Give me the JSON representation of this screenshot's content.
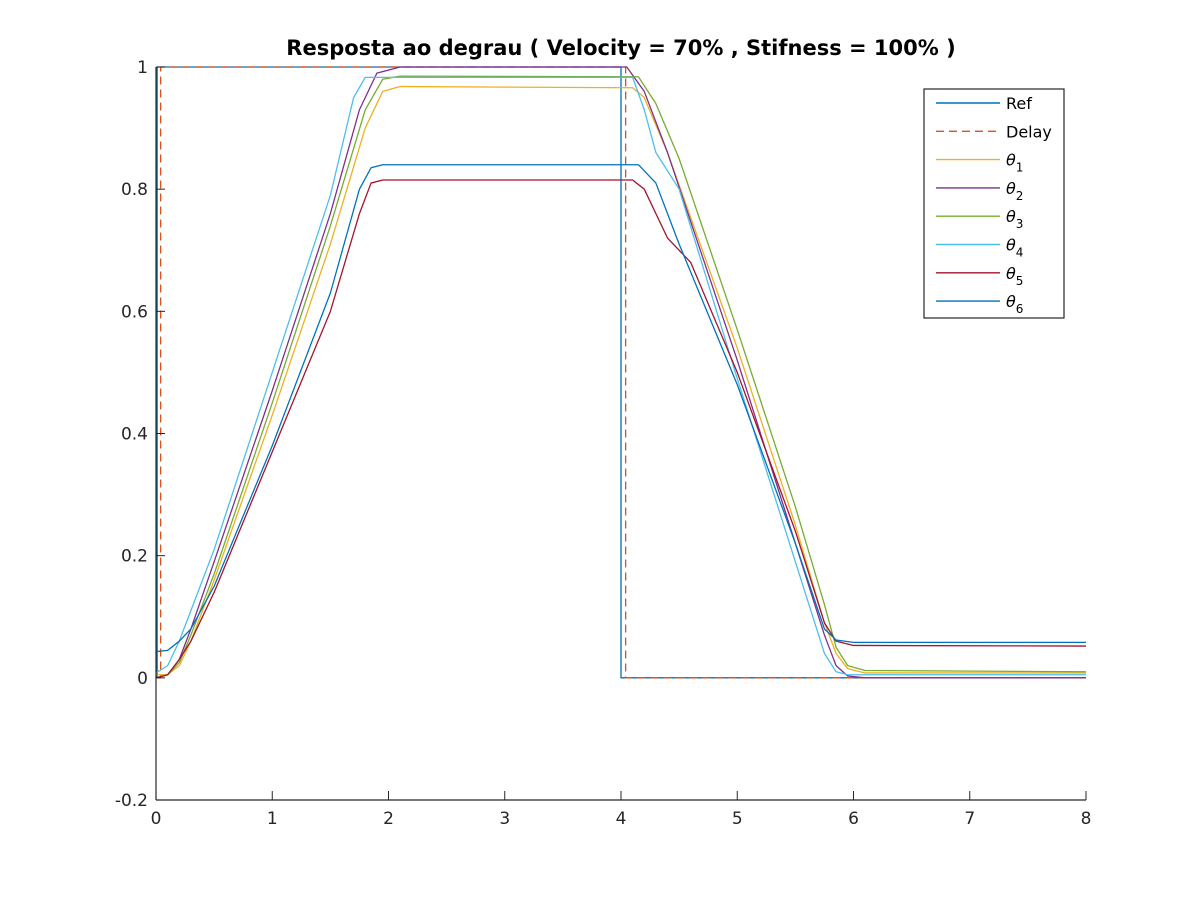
{
  "chart_data": {
    "type": "line",
    "title": "Resposta ao degrau ( Velocity = 70% , Stifness = 100% )",
    "xlabel": "",
    "ylabel": "",
    "xlim": [
      0,
      8
    ],
    "ylim": [
      -0.2,
      1
    ],
    "xticks": [
      0,
      1,
      2,
      3,
      4,
      5,
      6,
      7,
      8
    ],
    "xtick_labels": [
      "0",
      "1",
      "2",
      "3",
      "4",
      "5",
      "6",
      "7",
      "8"
    ],
    "yticks": [
      -0.2,
      0,
      0.2,
      0.4,
      0.6,
      0.8,
      1
    ],
    "ytick_labels": [
      "-0.2",
      "0",
      "0.2",
      "0.4",
      "0.6",
      "0.8",
      "1"
    ],
    "grid": false,
    "legend_placement": "top-right",
    "series": [
      {
        "name": "Ref",
        "legend_symbol": "",
        "legend_sub": "",
        "color": "#0072BD",
        "dash": "solid",
        "points": [
          [
            0,
            0
          ],
          [
            0.01,
            0
          ],
          [
            0.01,
            1
          ],
          [
            4.0,
            1
          ],
          [
            4.0,
            0
          ],
          [
            8,
            0
          ]
        ]
      },
      {
        "name": "Delay",
        "legend_symbol": "",
        "legend_sub": "",
        "color": "#D95319",
        "dash": "dashed",
        "points": [
          [
            0,
            0
          ],
          [
            0.04,
            0
          ],
          [
            0.04,
            1
          ],
          [
            4.04,
            1
          ],
          [
            4.04,
            0
          ],
          [
            8,
            0
          ]
        ]
      },
      {
        "name": "θ1",
        "legend_symbol": "θ",
        "legend_sub": "1",
        "color": "#EDB120",
        "dash": "solid",
        "points": [
          [
            0,
            0.005
          ],
          [
            0.1,
            0.005
          ],
          [
            0.2,
            0.02
          ],
          [
            0.3,
            0.06
          ],
          [
            0.5,
            0.16
          ],
          [
            1.0,
            0.43
          ],
          [
            1.5,
            0.71
          ],
          [
            1.8,
            0.9
          ],
          [
            1.95,
            0.96
          ],
          [
            2.1,
            0.968
          ],
          [
            4.1,
            0.966
          ],
          [
            4.2,
            0.95
          ],
          [
            4.4,
            0.86
          ],
          [
            5.0,
            0.54
          ],
          [
            5.5,
            0.25
          ],
          [
            5.75,
            0.09
          ],
          [
            5.85,
            0.04
          ],
          [
            5.95,
            0.015
          ],
          [
            6.1,
            0.008
          ],
          [
            8,
            0.008
          ]
        ]
      },
      {
        "name": "θ2",
        "legend_symbol": "θ",
        "legend_sub": "2",
        "color": "#7E2F8E",
        "dash": "solid",
        "points": [
          [
            0,
            0.0
          ],
          [
            0.1,
            0.005
          ],
          [
            0.2,
            0.03
          ],
          [
            0.3,
            0.08
          ],
          [
            0.5,
            0.19
          ],
          [
            1.0,
            0.47
          ],
          [
            1.5,
            0.76
          ],
          [
            1.75,
            0.93
          ],
          [
            1.9,
            0.99
          ],
          [
            2.1,
            1.0
          ],
          [
            4.05,
            1.0
          ],
          [
            4.2,
            0.96
          ],
          [
            4.4,
            0.86
          ],
          [
            5.0,
            0.52
          ],
          [
            5.5,
            0.22
          ],
          [
            5.75,
            0.07
          ],
          [
            5.85,
            0.02
          ],
          [
            5.95,
            0.003
          ],
          [
            6.1,
            0.0
          ],
          [
            8,
            0.0
          ]
        ]
      },
      {
        "name": "θ3",
        "legend_symbol": "θ",
        "legend_sub": "3",
        "color": "#77AC30",
        "dash": "solid",
        "points": [
          [
            0,
            0.0
          ],
          [
            0.1,
            0.005
          ],
          [
            0.2,
            0.025
          ],
          [
            0.3,
            0.07
          ],
          [
            0.5,
            0.17
          ],
          [
            1.0,
            0.45
          ],
          [
            1.5,
            0.74
          ],
          [
            1.8,
            0.93
          ],
          [
            1.95,
            0.98
          ],
          [
            2.1,
            0.985
          ],
          [
            4.15,
            0.984
          ],
          [
            4.3,
            0.94
          ],
          [
            4.5,
            0.85
          ],
          [
            5.0,
            0.57
          ],
          [
            5.5,
            0.28
          ],
          [
            5.75,
            0.12
          ],
          [
            5.85,
            0.05
          ],
          [
            5.95,
            0.02
          ],
          [
            6.1,
            0.012
          ],
          [
            8,
            0.01
          ]
        ]
      },
      {
        "name": "θ4",
        "legend_symbol": "θ",
        "legend_sub": "4",
        "color": "#4DBEEE",
        "dash": "solid",
        "points": [
          [
            0,
            0.008
          ],
          [
            0.1,
            0.02
          ],
          [
            0.2,
            0.06
          ],
          [
            0.3,
            0.11
          ],
          [
            0.5,
            0.21
          ],
          [
            1.0,
            0.5
          ],
          [
            1.5,
            0.79
          ],
          [
            1.7,
            0.95
          ],
          [
            1.8,
            0.983
          ],
          [
            4.1,
            0.983
          ],
          [
            4.2,
            0.93
          ],
          [
            4.3,
            0.86
          ],
          [
            4.5,
            0.8
          ],
          [
            5.0,
            0.49
          ],
          [
            5.5,
            0.19
          ],
          [
            5.75,
            0.04
          ],
          [
            5.85,
            0.01
          ],
          [
            5.95,
            0.005
          ],
          [
            8,
            0.005
          ]
        ]
      },
      {
        "name": "θ5",
        "legend_symbol": "θ",
        "legend_sub": "5",
        "color": "#A2142F",
        "dash": "solid",
        "points": [
          [
            0,
            0.0
          ],
          [
            0.1,
            0.005
          ],
          [
            0.2,
            0.03
          ],
          [
            0.3,
            0.06
          ],
          [
            0.5,
            0.14
          ],
          [
            1.0,
            0.37
          ],
          [
            1.5,
            0.6
          ],
          [
            1.75,
            0.76
          ],
          [
            1.85,
            0.81
          ],
          [
            1.95,
            0.815
          ],
          [
            4.1,
            0.815
          ],
          [
            4.2,
            0.8
          ],
          [
            4.4,
            0.72
          ],
          [
            4.6,
            0.68
          ],
          [
            5.0,
            0.5
          ],
          [
            5.5,
            0.24
          ],
          [
            5.75,
            0.09
          ],
          [
            5.85,
            0.06
          ],
          [
            6.0,
            0.053
          ],
          [
            8,
            0.052
          ]
        ]
      },
      {
        "name": "θ6",
        "legend_symbol": "θ",
        "legend_sub": "6",
        "color": "#0072BD",
        "dash": "solid",
        "points": [
          [
            0,
            0.043
          ],
          [
            0.1,
            0.045
          ],
          [
            0.2,
            0.06
          ],
          [
            0.3,
            0.08
          ],
          [
            0.5,
            0.15
          ],
          [
            1.0,
            0.38
          ],
          [
            1.5,
            0.63
          ],
          [
            1.75,
            0.8
          ],
          [
            1.85,
            0.835
          ],
          [
            1.95,
            0.84
          ],
          [
            4.15,
            0.84
          ],
          [
            4.3,
            0.81
          ],
          [
            4.5,
            0.71
          ],
          [
            5.0,
            0.48
          ],
          [
            5.5,
            0.22
          ],
          [
            5.75,
            0.08
          ],
          [
            5.85,
            0.062
          ],
          [
            6.0,
            0.058
          ],
          [
            8,
            0.058
          ]
        ]
      }
    ]
  }
}
